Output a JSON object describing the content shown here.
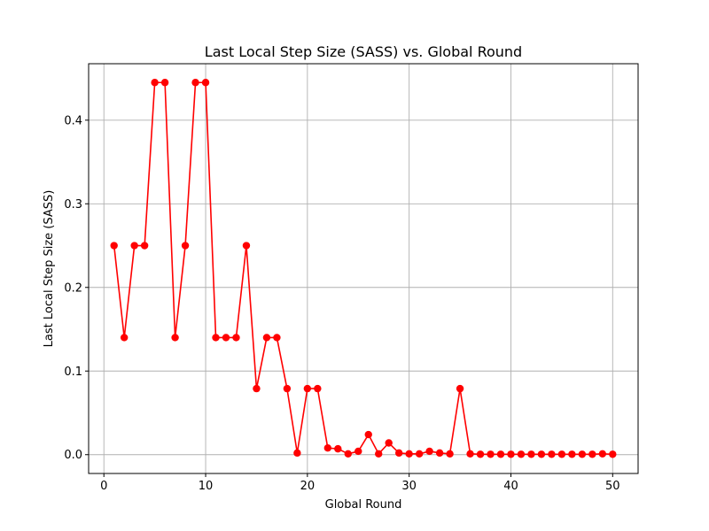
{
  "chart_data": {
    "type": "line",
    "title": "Last Local Step Size (SASS) vs. Global Round",
    "xlabel": "Global Round",
    "ylabel": "Last Local Step Size (SASS)",
    "xlim": [
      -1.5,
      52.5
    ],
    "ylim": [
      -0.0225,
      0.4675
    ],
    "xticks": [
      0,
      10,
      20,
      30,
      40,
      50
    ],
    "yticks": [
      0.0,
      0.1,
      0.2,
      0.3,
      0.4
    ],
    "xtick_labels": [
      "0",
      "10",
      "20",
      "30",
      "40",
      "50"
    ],
    "ytick_labels": [
      "0.0",
      "0.1",
      "0.2",
      "0.3",
      "0.4"
    ],
    "grid": true,
    "series": [
      {
        "color": "#ff0000",
        "marker": "circle",
        "x": [
          1,
          2,
          3,
          4,
          5,
          6,
          7,
          8,
          9,
          10,
          11,
          12,
          13,
          14,
          15,
          16,
          17,
          18,
          19,
          20,
          21,
          22,
          23,
          24,
          25,
          26,
          27,
          28,
          29,
          30,
          31,
          32,
          33,
          34,
          35,
          36,
          37,
          38,
          39,
          40,
          41,
          42,
          43,
          44,
          45,
          46,
          47,
          48,
          49,
          50
        ],
        "y": [
          0.25,
          0.14,
          0.25,
          0.25,
          0.445,
          0.445,
          0.14,
          0.25,
          0.445,
          0.445,
          0.14,
          0.14,
          0.14,
          0.25,
          0.079,
          0.14,
          0.14,
          0.079,
          0.002,
          0.079,
          0.079,
          0.008,
          0.007,
          0.001,
          0.004,
          0.024,
          0.001,
          0.014,
          0.002,
          0.001,
          0.001,
          0.004,
          0.002,
          0.001,
          0.079,
          0.001,
          0.0005,
          0.0005,
          0.0005,
          0.0005,
          0.0005,
          0.0005,
          0.0005,
          0.0005,
          0.0005,
          0.0005,
          0.0005,
          0.0005,
          0.001,
          0.0005
        ]
      }
    ]
  }
}
